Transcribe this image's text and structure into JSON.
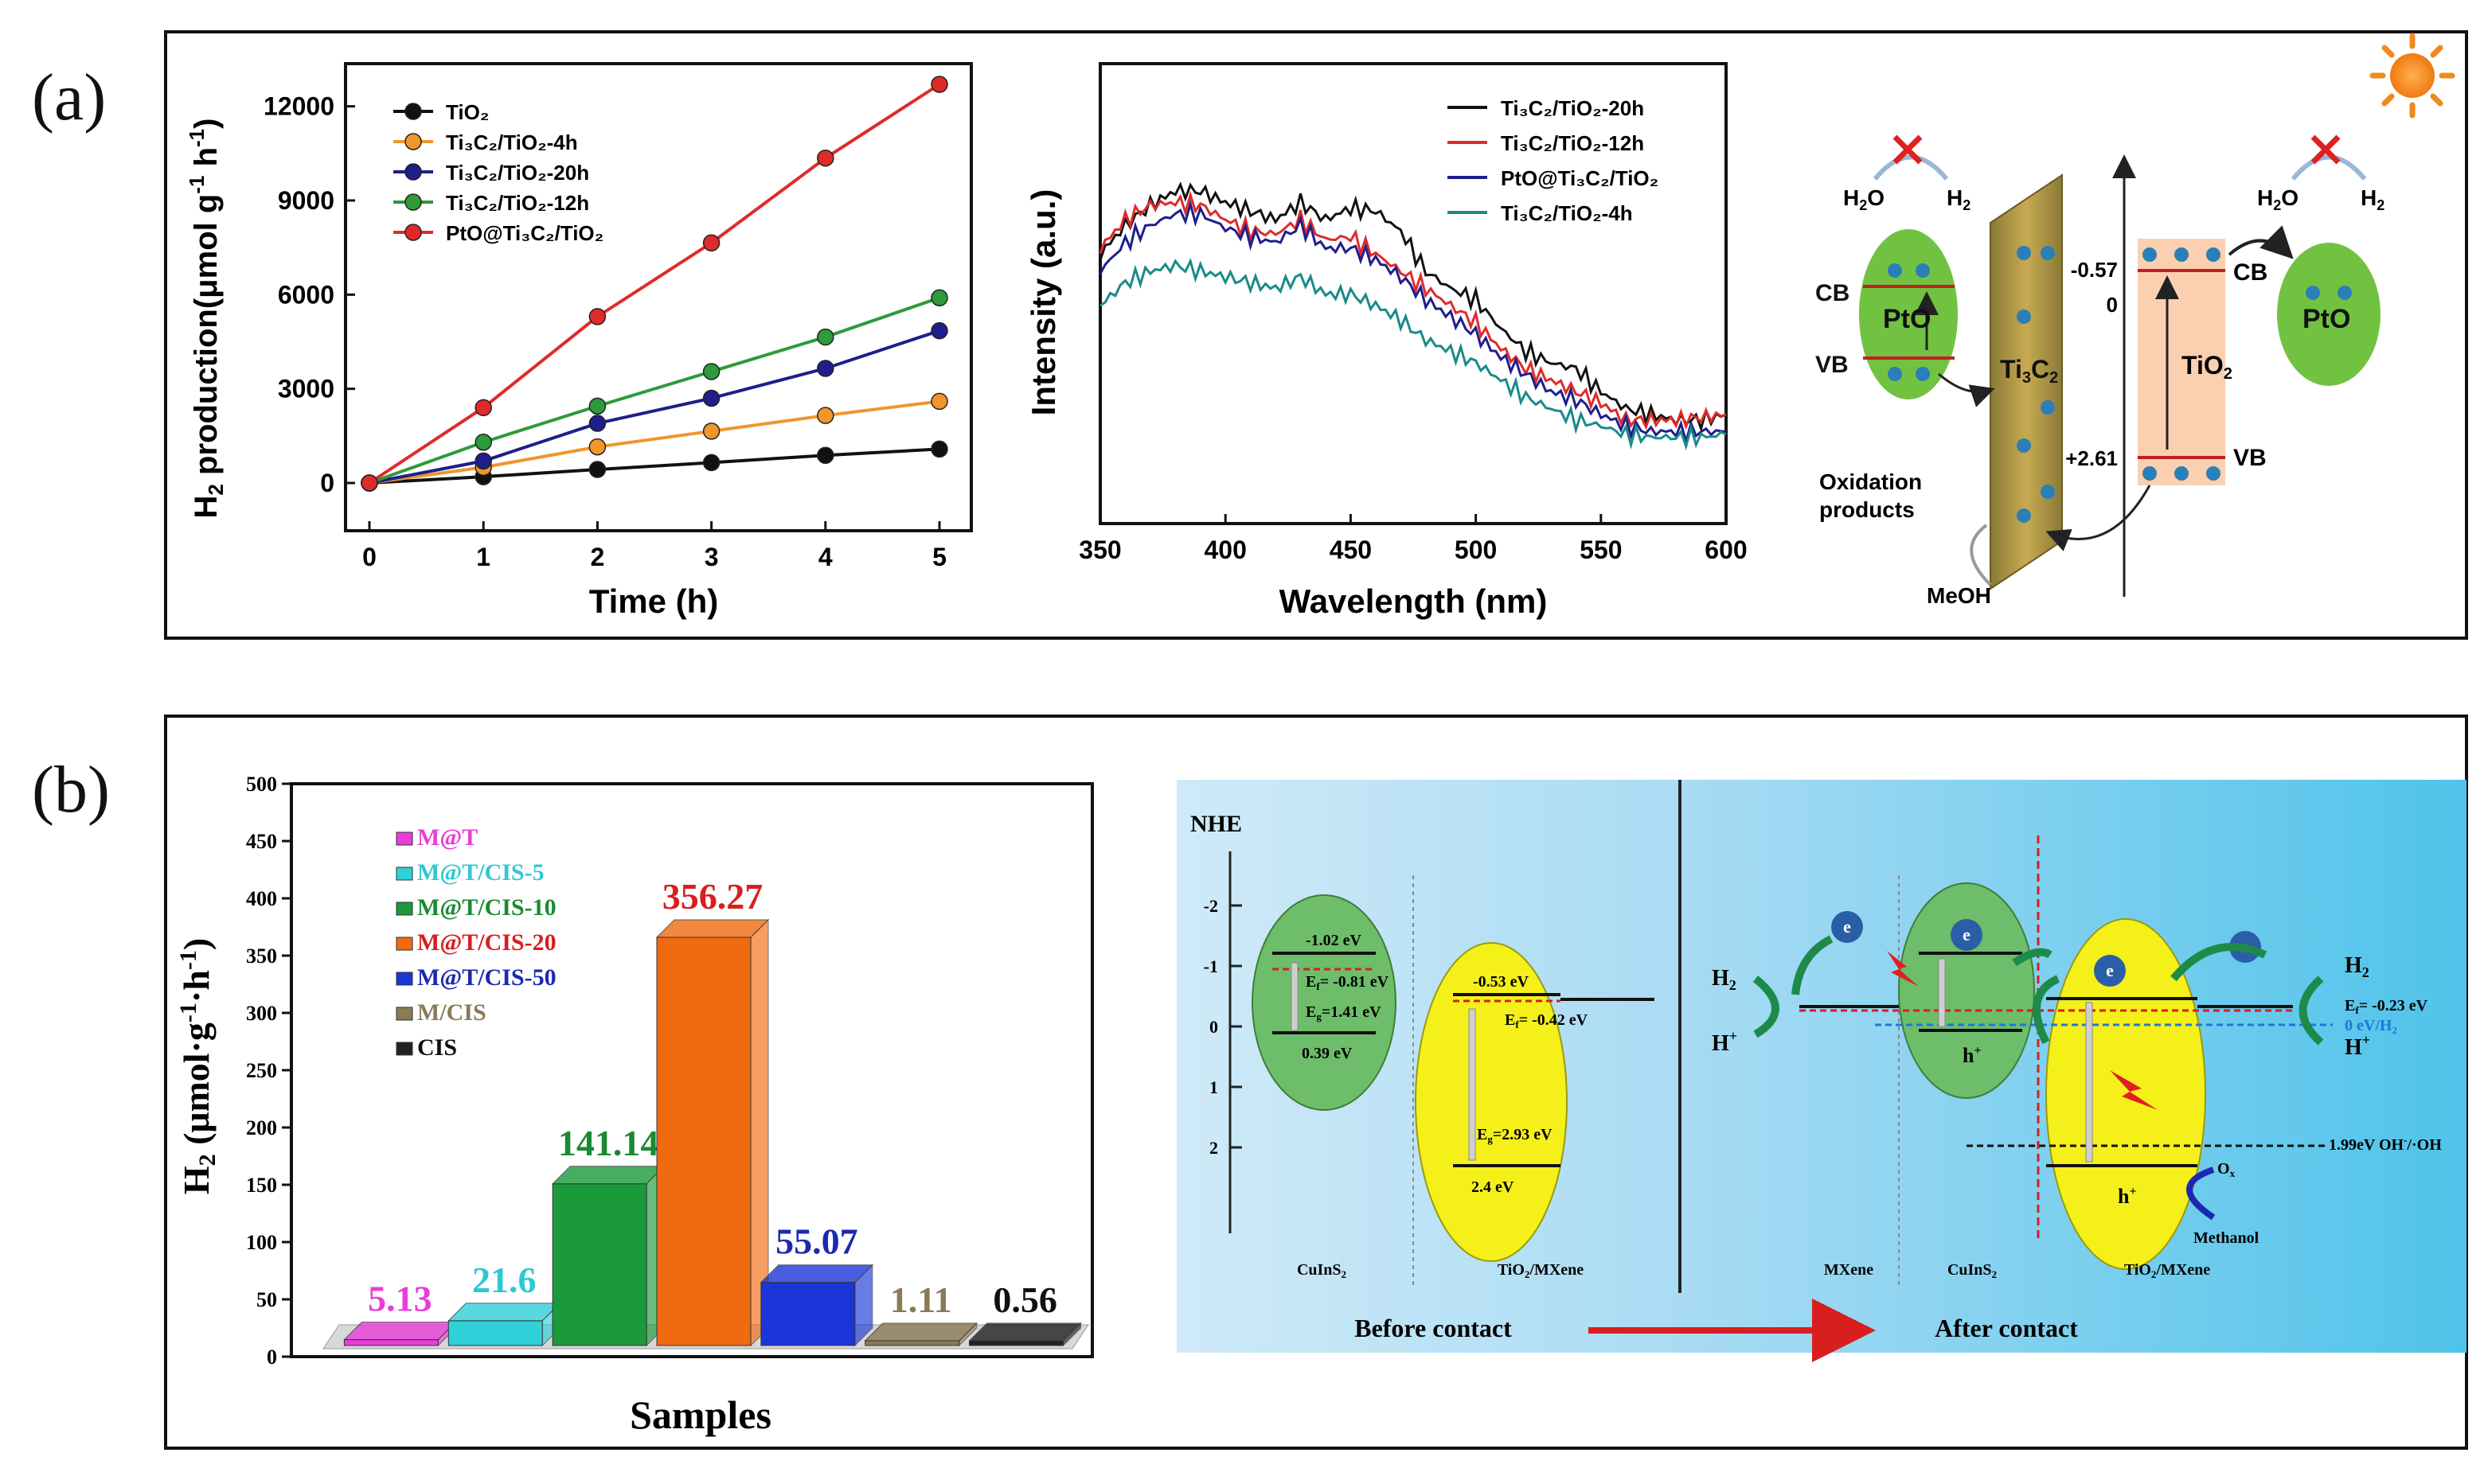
{
  "panel_labels": {
    "a": "(a)",
    "b": "(b)"
  },
  "chart_data": [
    {
      "type": "line",
      "ylabel_main": "H",
      "ylabel_sub": "2",
      "ylabel_rest": " production(μmol g",
      "ylabel_sup1": "-1",
      "ylabel_mid": " h",
      "ylabel_sup2": "-1",
      "ylabel_end": ")",
      "xlabel": "Time (h)",
      "x": [
        0,
        1,
        2,
        3,
        4,
        5
      ],
      "xlim": [
        0,
        5
      ],
      "ylim": [
        0,
        12000
      ],
      "xticks": [
        "0",
        "1",
        "2",
        "3",
        "4",
        "5"
      ],
      "yticks": [
        "0",
        "3000",
        "6000",
        "9000",
        "12000"
      ],
      "legend_position": "top-left",
      "series": [
        {
          "name": "TiO₂",
          "color": "#111111",
          "values": [
            0,
            200,
            430,
            650,
            880,
            1080
          ]
        },
        {
          "name": "Ti₃C₂/TiO₂-4h",
          "color": "#f0962a",
          "values": [
            0,
            500,
            1150,
            1650,
            2150,
            2600
          ]
        },
        {
          "name": "Ti₃C₂/TiO₂-20h",
          "color": "#1e1e8c",
          "values": [
            0,
            700,
            1900,
            2700,
            3650,
            4850
          ]
        },
        {
          "name": "Ti₃C₂/TiO₂-12h",
          "color": "#2e9a3a",
          "values": [
            0,
            1300,
            2450,
            3550,
            4650,
            5900
          ]
        },
        {
          "name": "PtO@Ti₃C₂/TiO₂",
          "color": "#e02a2a",
          "values": [
            0,
            2400,
            5300,
            7650,
            10350,
            12700
          ]
        }
      ]
    },
    {
      "type": "line",
      "ylabel": "Intensity (a.u.)",
      "xlabel": "Wavelength (nm)",
      "xlim": [
        350,
        600
      ],
      "xticks": [
        "350",
        "400",
        "450",
        "500",
        "550",
        "600"
      ],
      "legend_position": "top-right",
      "series": [
        {
          "name": "Ti₃C₂/TiO₂-20h",
          "color": "#111111",
          "x": [
            350,
            360,
            370,
            380,
            390,
            400,
            410,
            420,
            430,
            440,
            450,
            460,
            470,
            480,
            490,
            500,
            510,
            520,
            530,
            540,
            550,
            560,
            570,
            580,
            590,
            600
          ],
          "values": [
            0.78,
            0.88,
            0.95,
            1.0,
            1.0,
            0.96,
            0.93,
            0.9,
            0.96,
            0.9,
            0.94,
            0.93,
            0.86,
            0.72,
            0.66,
            0.62,
            0.52,
            0.44,
            0.4,
            0.38,
            0.3,
            0.24,
            0.22,
            0.2,
            0.2,
            0.22
          ]
        },
        {
          "name": "Ti₃C₂/TiO₂-12h",
          "color": "#e02a2a",
          "x": [
            350,
            360,
            370,
            380,
            390,
            400,
            410,
            420,
            430,
            440,
            450,
            460,
            470,
            480,
            490,
            500,
            510,
            520,
            530,
            540,
            550,
            560,
            570,
            580,
            590,
            600
          ],
          "values": [
            0.8,
            0.9,
            0.95,
            0.96,
            0.95,
            0.9,
            0.86,
            0.85,
            0.9,
            0.83,
            0.84,
            0.78,
            0.72,
            0.66,
            0.6,
            0.54,
            0.45,
            0.38,
            0.34,
            0.3,
            0.26,
            0.2,
            0.2,
            0.2,
            0.21,
            0.22
          ]
        },
        {
          "name": "PtO@Ti₃C₂/TiO₂",
          "color": "#1e1e8c",
          "x": [
            350,
            360,
            370,
            380,
            390,
            400,
            410,
            420,
            430,
            440,
            450,
            460,
            470,
            480,
            490,
            500,
            510,
            520,
            530,
            540,
            550,
            560,
            570,
            580,
            590,
            600
          ],
          "values": [
            0.72,
            0.82,
            0.88,
            0.92,
            0.92,
            0.87,
            0.84,
            0.82,
            0.88,
            0.8,
            0.8,
            0.76,
            0.7,
            0.62,
            0.56,
            0.5,
            0.42,
            0.36,
            0.3,
            0.27,
            0.22,
            0.18,
            0.16,
            0.16,
            0.16,
            0.16
          ]
        },
        {
          "name": "Ti₃C₂/TiO₂-4h",
          "color": "#1a8a8a",
          "x": [
            350,
            360,
            370,
            380,
            390,
            400,
            410,
            420,
            430,
            440,
            450,
            460,
            470,
            480,
            490,
            500,
            510,
            520,
            530,
            540,
            550,
            560,
            570,
            580,
            590,
            600
          ],
          "values": [
            0.6,
            0.68,
            0.72,
            0.74,
            0.72,
            0.7,
            0.68,
            0.66,
            0.7,
            0.64,
            0.64,
            0.6,
            0.55,
            0.48,
            0.44,
            0.4,
            0.34,
            0.28,
            0.24,
            0.2,
            0.18,
            0.15,
            0.14,
            0.14,
            0.14,
            0.15
          ]
        }
      ]
    },
    {
      "type": "bar",
      "ylabel_main": "H",
      "ylabel_sub": "2",
      "ylabel_rest": "  (μmol·g",
      "ylabel_sup1": "-1",
      "ylabel_mid": "·h",
      "ylabel_sup2": "-1",
      "ylabel_end": ")",
      "xlabel": "Samples",
      "ylim": [
        0,
        500
      ],
      "yticks": [
        "0",
        "50",
        "100",
        "150",
        "200",
        "250",
        "300",
        "350",
        "400",
        "450",
        "500"
      ],
      "legend_position": "top-left",
      "categories": [
        "M@T",
        "M@T/CIS-5",
        "M@T/CIS-10",
        "M@T/CIS-20",
        "M@T/CIS-50",
        "M/CIS",
        "CIS"
      ],
      "values": [
        5.13,
        21.6,
        141.14,
        356.27,
        55.07,
        1.11,
        0.56
      ],
      "value_labels": [
        "5.13",
        "21.6",
        "141.14",
        "356.27",
        "55.07",
        "1.11",
        "0.56"
      ],
      "colors": [
        "#e83ed8",
        "#2fd0d8",
        "#1a9a3a",
        "#f06a10",
        "#1a36d8",
        "#8a7a56",
        "#222222"
      ],
      "label_colors": [
        "#e83ed8",
        "#2fc8d2",
        "#1a8a32",
        "#d81e1e",
        "#1a2ab0",
        "#8a7a56",
        "#111111"
      ]
    }
  ],
  "scheme_a": {
    "pto_left": "PtO",
    "pto_right": "PtO",
    "ti3c2": "Ti",
    "ti3c2_sub1": "3",
    "ti3c2_c": "C",
    "ti3c2_sub2": "2",
    "tio2": "TiO",
    "tio2_sub": "2",
    "cb": "CB",
    "vb": "VB",
    "cb_right": "CB",
    "vb_right": "VB",
    "h2o": "H",
    "h2o_sub": "2",
    "h2o_o": "O",
    "h2": "H",
    "h2_sub": "2",
    "e_label": "e",
    "h_label": "h",
    "pos_cb": "-0.57",
    "zero": "0",
    "pos_vb": "+2.61",
    "oxidation": "Oxidation",
    "products": "products",
    "meoh": "MeOH"
  },
  "scheme_b": {
    "nhe": "NHE",
    "ticks": [
      "-2",
      "-1",
      "0",
      "1",
      "2"
    ],
    "cuins2_top": "-1.02 eV",
    "cuins2_ef": "E",
    "cuins2_ef_val": "= -0.81 eV",
    "cuins2_eg": "E",
    "cuins2_eg_val": "=1.41 eV",
    "cuins2_bottom": "0.39 eV",
    "tio2_top": "-0.53 eV",
    "tio2_ef": "E",
    "tio2_ef_val": "= -0.42 eV",
    "tio2_eg": "E",
    "tio2_eg_val": "=2.93 eV",
    "tio2_bottom": "2.4 eV",
    "label_cuins2": "CuInS",
    "label_tio2mx": "TiO",
    "label_tio2mx_rest": "/MXene",
    "label_mxene": "MXene",
    "label_cuins2_b": "CuInS",
    "label_tio2mx_b": "TiO",
    "label_tio2mx_b_rest": "/MXene",
    "h2": "H",
    "hplus": "H",
    "h2_right": "H",
    "hplus_right": "H",
    "ef_right": "E",
    "ef_right_val": "= -0.23 eV",
    "zero_ev": "0 eV/H",
    "ohline": "1.99eV OH",
    "ohline_rest": "/·OH",
    "o2": "O",
    "methanol": "Methanol",
    "before": "Before  contact",
    "after": "After contact",
    "hplus_hole": "h",
    "e_minus": "e"
  }
}
